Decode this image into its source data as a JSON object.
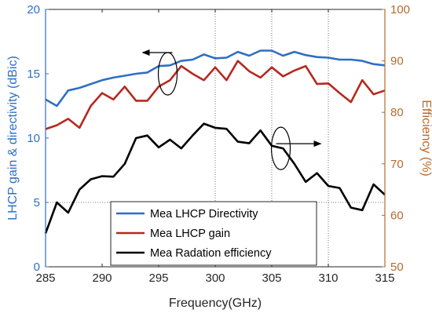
{
  "chart_data": {
    "type": "line",
    "xlabel": "Frequency(GHz)",
    "ylabel_left": "LHCP gain & directivity (dBic)",
    "ylabel_right": "Efficiency (%)",
    "xlim": [
      285,
      315
    ],
    "ylim_left": [
      0,
      20
    ],
    "ylim_right": [
      50,
      100
    ],
    "xticks": [
      285,
      290,
      295,
      300,
      305,
      310,
      315
    ],
    "yticks_left": [
      0,
      5,
      10,
      15,
      20
    ],
    "yticks_right": [
      50,
      60,
      70,
      80,
      90,
      100
    ],
    "legend_position": "bottom-center",
    "grid": "dotted at x=300, 305, 310 and y=5",
    "colors": {
      "directivity": "#2e6fc4",
      "gain": "#b5291f",
      "efficiency": "#000000",
      "left_axis": "#2e6fc4",
      "right_axis": "#b86a2c"
    },
    "series": [
      {
        "name": "Mea LHCP Directivity",
        "axis": "left",
        "x": [
          285,
          286,
          287,
          288,
          289,
          290,
          291,
          292,
          293,
          294,
          295,
          296,
          297,
          298,
          299,
          300,
          301,
          302,
          303,
          304,
          305,
          306,
          307,
          308,
          309,
          310,
          311,
          312,
          313,
          314,
          315
        ],
        "values": [
          13.0,
          12.5,
          13.7,
          13.9,
          14.2,
          14.5,
          14.7,
          14.85,
          15.0,
          15.1,
          15.6,
          15.65,
          16.0,
          16.1,
          16.5,
          16.2,
          16.25,
          16.7,
          16.4,
          16.8,
          16.8,
          16.4,
          16.7,
          16.45,
          16.3,
          16.25,
          16.1,
          16.1,
          16.0,
          15.75,
          15.65
        ]
      },
      {
        "name": "Mea LHCP gain",
        "axis": "left",
        "x": [
          285,
          286,
          287,
          288,
          289,
          290,
          291,
          292,
          293,
          294,
          295,
          296,
          297,
          298,
          299,
          300,
          301,
          302,
          303,
          304,
          305,
          306,
          307,
          308,
          309,
          310,
          311,
          312,
          313,
          314,
          315
        ],
        "values": [
          10.7,
          11.0,
          11.5,
          10.8,
          12.5,
          13.5,
          13.0,
          14.0,
          12.9,
          12.9,
          14.0,
          14.5,
          15.6,
          15.0,
          14.5,
          15.5,
          14.5,
          16.0,
          15.2,
          14.7,
          15.5,
          14.8,
          15.25,
          15.6,
          14.2,
          14.25,
          13.5,
          12.8,
          14.5,
          13.4,
          13.7
        ]
      },
      {
        "name": "Mea Radation efficiency",
        "axis": "right",
        "x": [
          285,
          286,
          287,
          288,
          289,
          290,
          291,
          292,
          293,
          294,
          295,
          296,
          297,
          298,
          299,
          300,
          301,
          302,
          303,
          304,
          305,
          306,
          307,
          308,
          309,
          310,
          311,
          312,
          313,
          314,
          315
        ],
        "values": [
          56.5,
          62.5,
          60.5,
          65.0,
          67.0,
          67.6,
          67.5,
          70.0,
          75.0,
          75.5,
          73.2,
          74.7,
          73.0,
          75.5,
          77.8,
          77.0,
          76.8,
          74.3,
          74.0,
          76.5,
          73.5,
          73.0,
          70.0,
          66.5,
          68.2,
          65.7,
          65.3,
          61.5,
          61.0,
          66.0,
          64.0
        ]
      }
    ],
    "annotations": [
      {
        "type": "ellipse",
        "target": "left",
        "x": 295.8,
        "y_left": 15.0,
        "arrow": "left"
      },
      {
        "type": "ellipse",
        "target": "right",
        "x": 305.8,
        "y_right": 73.0,
        "arrow": "right"
      }
    ]
  }
}
